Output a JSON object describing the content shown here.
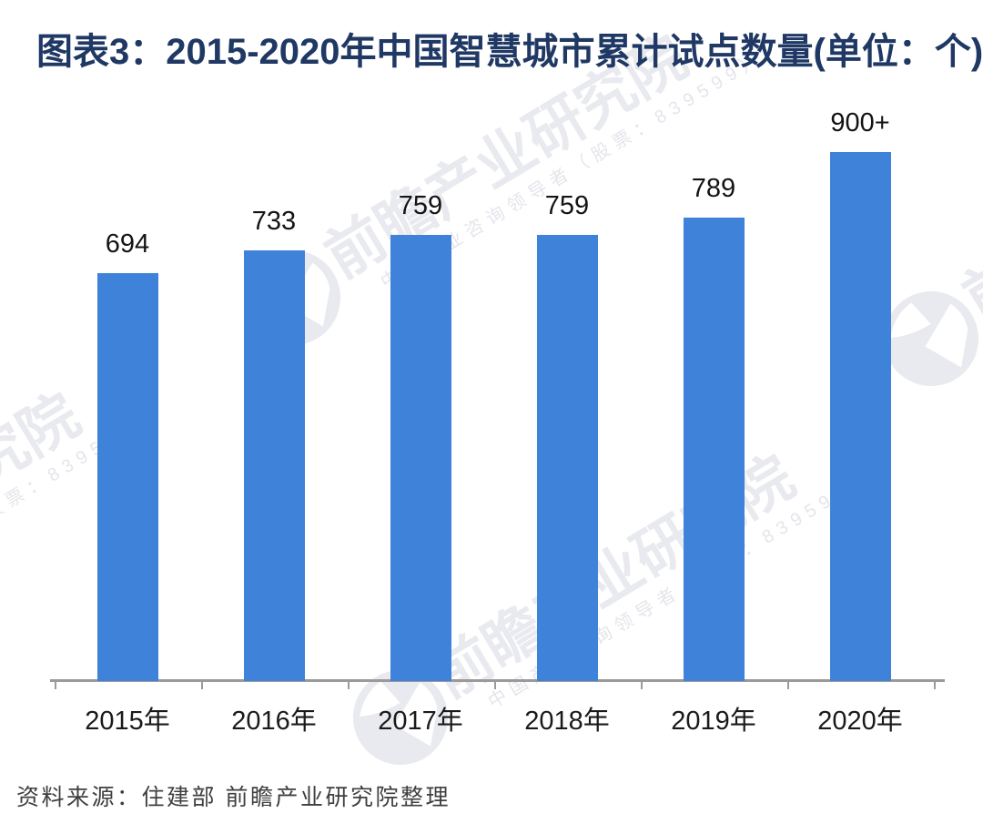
{
  "title": "图表3：2015-2020年中国智慧城市累计试点数量(单位：个)",
  "source": "资料来源：住建部 前瞻产业研究院整理",
  "watermark": {
    "logo": "qianzhan-bird-logo",
    "brand_text": "前瞻产业研究院",
    "tagline": "中国产业咨询领导者（股票：839599）"
  },
  "colors": {
    "bar": "#3E82DA",
    "title": "#1F3864",
    "axis": "#9A9A9A",
    "value_label": "#141414",
    "source_text": "#3F3F3F"
  },
  "chart_data": {
    "type": "bar",
    "title": "图表3：2015-2020年中国智慧城市累计试点数量(单位：个)",
    "categories": [
      "2015年",
      "2016年",
      "2017年",
      "2018年",
      "2019年",
      "2020年"
    ],
    "values": [
      694,
      733,
      759,
      759,
      789,
      900
    ],
    "value_labels": [
      "694",
      "733",
      "759",
      "759",
      "789",
      "900+"
    ],
    "xlabel": "",
    "ylabel": "个",
    "ylim": [
      0,
      950
    ],
    "grid": false,
    "legend_position": "none",
    "data_labels": true,
    "bar_color": "#3E82DA"
  }
}
